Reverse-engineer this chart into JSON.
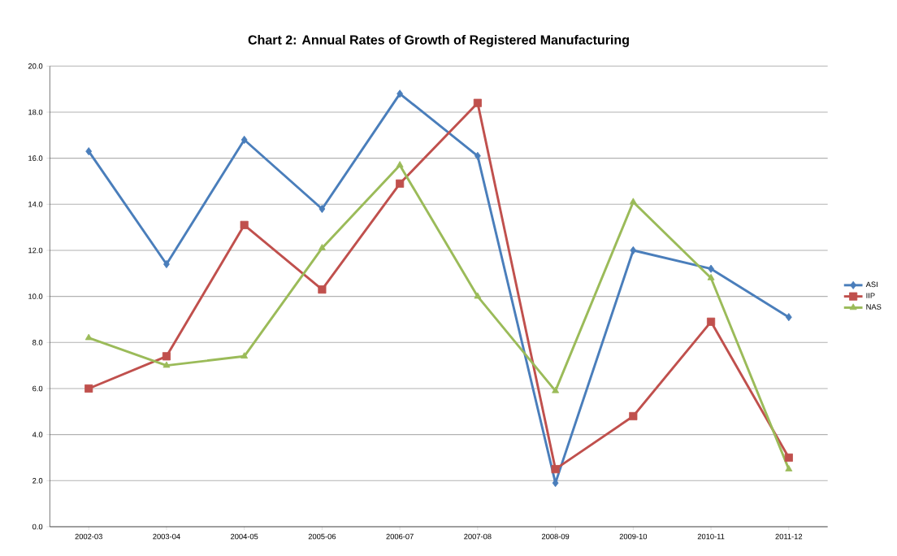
{
  "chart_data": {
    "type": "line",
    "title": "Chart 2: Annual Rates of Growth of Registered Manufacturing",
    "categories": [
      "2002-03",
      "2003-04",
      "2004-05",
      "2005-06",
      "2006-07",
      "2007-08",
      "2008-09",
      "2009-10",
      "2010-11",
      "2011-12"
    ],
    "series": [
      {
        "name": "ASI",
        "color": "#4a7ebb",
        "marker": "diamond",
        "values": [
          16.3,
          11.4,
          16.8,
          13.8,
          18.8,
          16.1,
          1.9,
          12.0,
          11.2,
          9.1
        ]
      },
      {
        "name": "IIP",
        "color": "#c0504d",
        "marker": "square",
        "values": [
          6.0,
          7.4,
          13.1,
          10.3,
          14.9,
          18.4,
          2.5,
          4.8,
          8.9,
          3.0
        ]
      },
      {
        "name": "NAS",
        "color": "#9bbb59",
        "marker": "triangle",
        "values": [
          8.2,
          7.0,
          7.4,
          12.1,
          15.7,
          10.0,
          5.9,
          14.1,
          10.8,
          2.5
        ]
      }
    ],
    "ylim": [
      0,
      20
    ],
    "yticks": [
      {
        "value": 0,
        "label": "0.0"
      },
      {
        "value": 2,
        "label": "2.0"
      },
      {
        "value": 4,
        "label": "4.0"
      },
      {
        "value": 6,
        "label": "6.0"
      },
      {
        "value": 8,
        "label": "8.0"
      },
      {
        "value": 10,
        "label": "10.0"
      },
      {
        "value": 12,
        "label": "12.0"
      },
      {
        "value": 14,
        "label": "14.0"
      },
      {
        "value": 16,
        "label": "16.0"
      },
      {
        "value": 18,
        "label": "18.0"
      },
      {
        "value": 20,
        "label": "20.0"
      }
    ],
    "grid": "y",
    "legend": "right",
    "line_style": "solid"
  }
}
